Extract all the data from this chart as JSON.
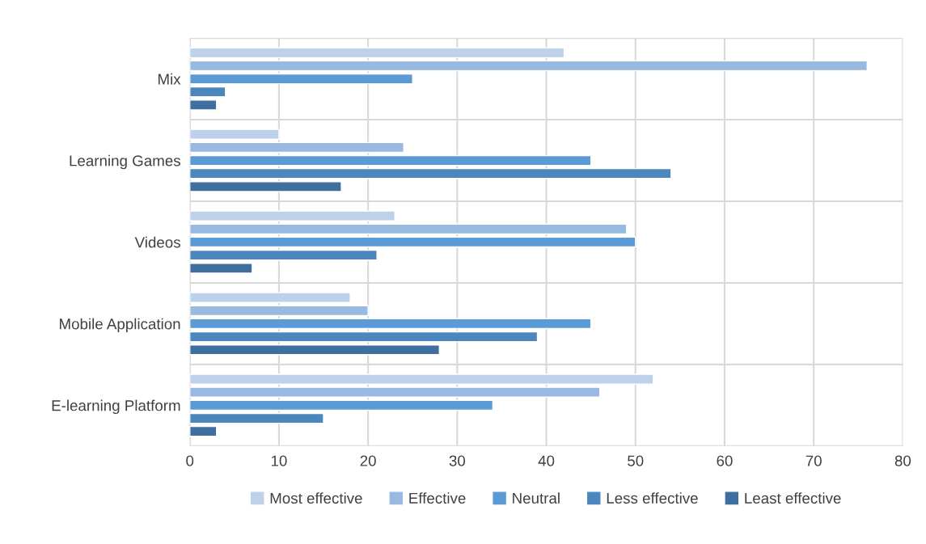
{
  "chart_data": {
    "type": "bar",
    "orientation": "horizontal",
    "categories": [
      "Mix",
      "Learning Games",
      "Videos",
      "Mobile Application",
      "E-learning Platform"
    ],
    "series": [
      {
        "name": "Most effective",
        "color": "#bdd1ea",
        "values": [
          42,
          10,
          23,
          18,
          52
        ]
      },
      {
        "name": "Effective",
        "color": "#98bae1",
        "values": [
          76,
          24,
          49,
          20,
          46
        ]
      },
      {
        "name": "Neutral",
        "color": "#5b9bd5",
        "values": [
          25,
          45,
          50,
          45,
          34
        ]
      },
      {
        "name": "Less effective",
        "color": "#4b87bd",
        "values": [
          4,
          54,
          21,
          39,
          15
        ]
      },
      {
        "name": "Least effective",
        "color": "#3e6f9e",
        "values": [
          3,
          17,
          7,
          28,
          3
        ]
      }
    ],
    "xlim": [
      0,
      80
    ],
    "xticks": [
      0,
      10,
      20,
      30,
      40,
      50,
      60,
      70,
      80
    ],
    "grid": true,
    "legend": "bottom"
  }
}
